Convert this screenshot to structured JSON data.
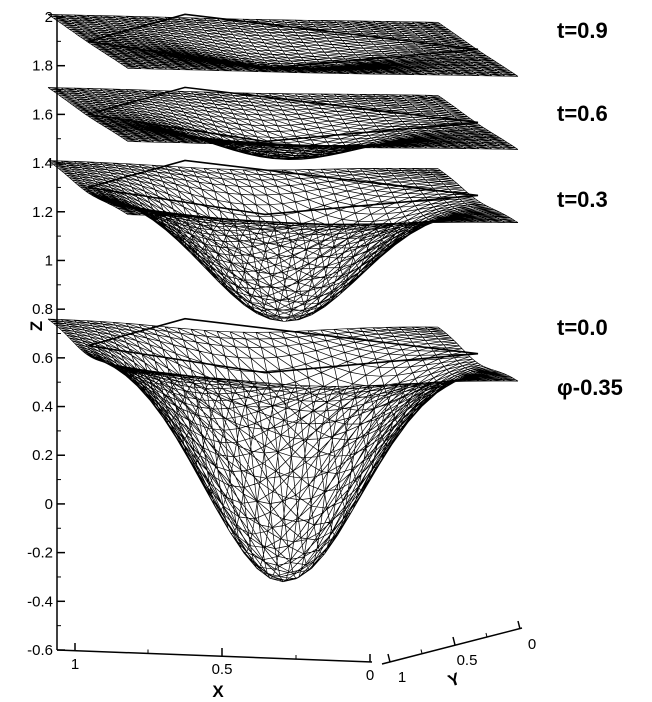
{
  "chart_data": {
    "type": "surface",
    "title": "",
    "zlabel": "Z",
    "xlabel": "X",
    "ylabel": "Y",
    "zlim": [
      -0.6,
      2
    ],
    "z_ticks": [
      "2",
      "1.8",
      "1.6",
      "1.4",
      "1.2",
      "1",
      "0.8",
      "0.6",
      "0.4",
      "0.2",
      "0",
      "-0.2",
      "-0.4",
      "-0.6"
    ],
    "x_ticks": [
      "1",
      "0.5",
      "0"
    ],
    "y_ticks": [
      "1",
      "0.5",
      "0"
    ],
    "surfaces": [
      {
        "label": "t=0.9",
        "plane_z": 1.9,
        "min_z": 1.8
      },
      {
        "label": "t=0.6",
        "plane_z": 1.6,
        "min_z": 1.42
      },
      {
        "label": "t=0.3",
        "plane_z": 1.3,
        "min_z": 0.75
      },
      {
        "label": "t=0.0",
        "plane_z": 0.65,
        "min_z": -0.32
      }
    ],
    "annotation": "φ-0.35",
    "grid": false
  }
}
